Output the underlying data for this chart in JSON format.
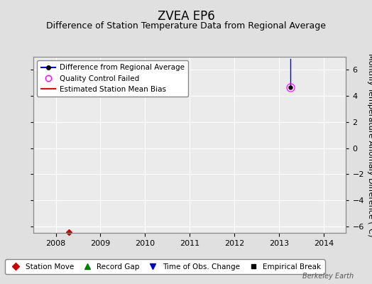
{
  "title": "ZVEA EP6",
  "subtitle": "Difference of Station Temperature Data from Regional Average",
  "ylabel": "Monthly Temperature Anomaly Difference (°C)",
  "xlim": [
    2007.5,
    2014.5
  ],
  "ylim": [
    -6.5,
    7.0
  ],
  "yticks": [
    -6,
    -4,
    -2,
    0,
    2,
    4,
    6
  ],
  "xticks": [
    2008,
    2009,
    2010,
    2011,
    2012,
    2013,
    2014
  ],
  "background_color": "#e0e0e0",
  "plot_bg_color": "#ebebeb",
  "grid_color": "#ffffff",
  "data_line_x": [
    2013.25,
    2013.25
  ],
  "data_line_y": [
    4.65,
    6.85
  ],
  "data_point_x": 2013.25,
  "data_point_y": 4.65,
  "qc_fail_x": 2013.25,
  "qc_fail_y": 4.65,
  "station_move_x": 2008.3,
  "station_move_y": -6.45,
  "watermark": "Berkeley Earth",
  "line_color": "#0000ff",
  "point_color": "#000000",
  "qc_color": "#ff00ff",
  "station_move_color": "#cc0000",
  "record_gap_color": "#008000",
  "time_change_color": "#0000cc",
  "emp_break_color": "#000000",
  "title_fontsize": 12,
  "subtitle_fontsize": 9,
  "tick_fontsize": 8,
  "ylabel_fontsize": 8,
  "legend_fontsize": 7.5,
  "watermark_fontsize": 7
}
